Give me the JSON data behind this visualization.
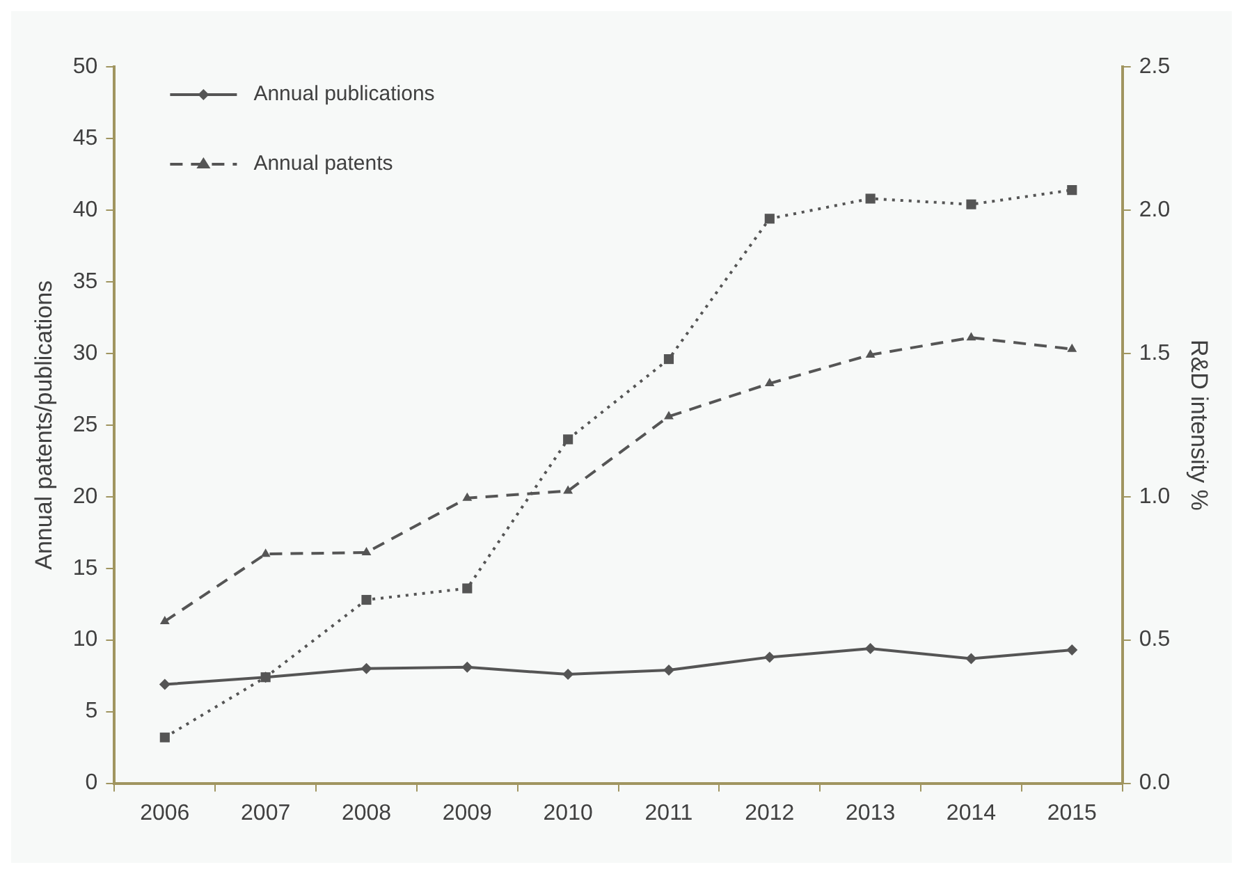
{
  "chart_data": {
    "type": "line",
    "categories": [
      "2006",
      "2007",
      "2008",
      "2009",
      "2010",
      "2011",
      "2012",
      "2013",
      "2014",
      "2015"
    ],
    "series": [
      {
        "name": "Annual publications",
        "color": "#555555",
        "marker": "diamond",
        "line_style": "solid",
        "values": [
          6.9,
          7.4,
          8.0,
          8.1,
          7.6,
          7.9,
          8.8,
          9.4,
          8.7,
          9.3
        ]
      },
      {
        "name": "Annual patents",
        "color": "#555555",
        "marker": "triangle",
        "line_style": "dashed",
        "values": [
          11.3,
          16.0,
          16.1,
          19.9,
          20.4,
          25.6,
          27.9,
          29.9,
          31.1,
          30.3
        ]
      },
      {
        "color": "#555555",
        "marker": "square",
        "line_style": "dotted",
        "axis": "y2",
        "values": [
          0.16,
          0.37,
          0.64,
          0.68,
          1.2,
          1.48,
          1.97,
          2.04,
          2.02,
          2.07
        ]
      }
    ],
    "ylabel": "Annual patents/publications",
    "y2label": "R&D intensity %",
    "ylim": [
      0,
      50
    ],
    "yticks": [
      0,
      5,
      10,
      15,
      20,
      25,
      30,
      35,
      40,
      45,
      50
    ],
    "y2lim": [
      0,
      2.5
    ],
    "y2ticks": [
      {
        "value": 0,
        "label": "0.0"
      },
      {
        "value": 0.5,
        "label": "0.5"
      },
      {
        "value": 1,
        "label": "1.0"
      },
      {
        "value": 1.5,
        "label": "1.5"
      },
      {
        "value": 2,
        "label": "2.0"
      },
      {
        "value": 2.5,
        "label": "2.5"
      }
    ],
    "grid": false,
    "legend": "top left"
  }
}
